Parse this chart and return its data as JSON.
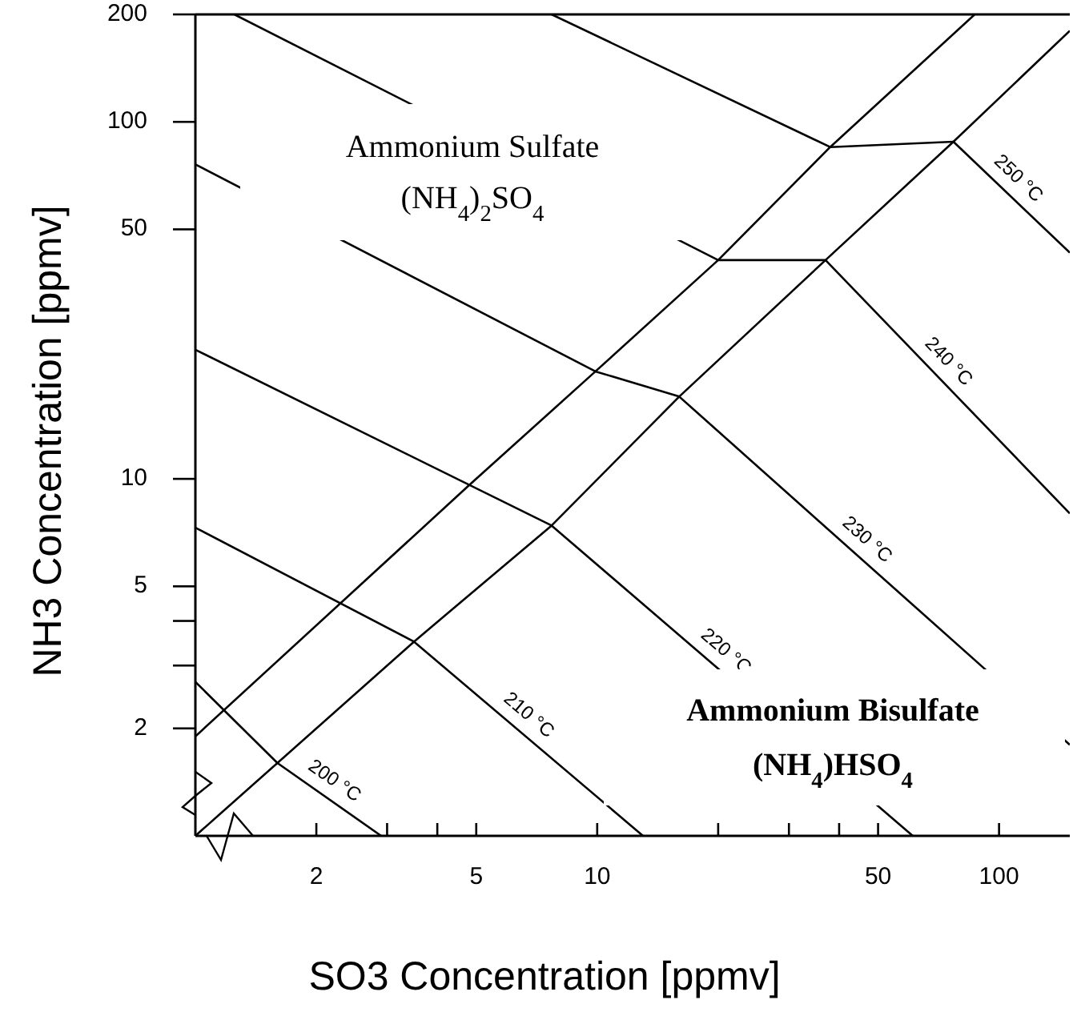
{
  "chart_data": {
    "type": "line",
    "xlabel": "SO3 Concentration [ppmv]",
    "ylabel": "NH3 Concentration [ppmv]",
    "log": "xy",
    "xlim": [
      1,
      150
    ],
    "ylim": [
      1,
      200
    ],
    "xticks": [
      2,
      {
        "value": 3,
        "label": null
      },
      {
        "value": 4,
        "label": null
      },
      5,
      10,
      {
        "value": 20,
        "label": null
      },
      {
        "value": 30,
        "label": null
      },
      {
        "value": 40,
        "label": null
      },
      50,
      100
    ],
    "yticks": [
      2,
      {
        "value": 3,
        "label": null
      },
      {
        "value": 4,
        "label": null
      },
      5,
      10,
      50,
      100,
      200
    ],
    "grid": false,
    "legend": false,
    "marker": "none",
    "line_style": "solid",
    "series": [
      {
        "color": "#000000",
        "x": [
          1,
          4.8,
          9.9,
          20,
          38,
          87
        ],
        "values": [
          1.9,
          9.6,
          20,
          41,
          85,
          200
        ]
      },
      {
        "color": "#000000",
        "x": [
          1,
          3.5,
          7.7,
          16,
          37,
          77,
          150
        ],
        "values": [
          1,
          3.5,
          7.4,
          17,
          41,
          88,
          180
        ]
      },
      {
        "name": "200 °C",
        "color": "#000000",
        "x": [
          1,
          1.6,
          2.9
        ],
        "values": [
          2.7,
          1.6,
          1
        ]
      },
      {
        "name": "210 °C",
        "color": "#000000",
        "x": [
          1,
          3.5,
          13
        ],
        "values": [
          7.3,
          3.5,
          1
        ]
      },
      {
        "name": "220 °C",
        "color": "#000000",
        "x": [
          1,
          7.7,
          61
        ],
        "values": [
          23,
          7.4,
          1
        ]
      },
      {
        "name": "230 °C",
        "color": "#000000",
        "x": [
          1,
          9.9,
          16,
          150
        ],
        "values": [
          76,
          20,
          17,
          1.8
        ]
      },
      {
        "name": "240 °C",
        "color": "#000000",
        "x": [
          1.25,
          20,
          37,
          150
        ],
        "values": [
          200,
          41,
          41,
          8
        ]
      },
      {
        "name": "250 °C",
        "color": "#000000",
        "x": [
          7.7,
          38,
          77,
          150
        ],
        "values": [
          200,
          85,
          88,
          43
        ]
      }
    ],
    "annotations": [
      "Ammonium Sulfate",
      "(NH$_{4}$)$_{2}$SO$_{4}$",
      "Ammonium Bisulfate",
      "(NH$_{4}$)HSO$_{4}$"
    ]
  }
}
